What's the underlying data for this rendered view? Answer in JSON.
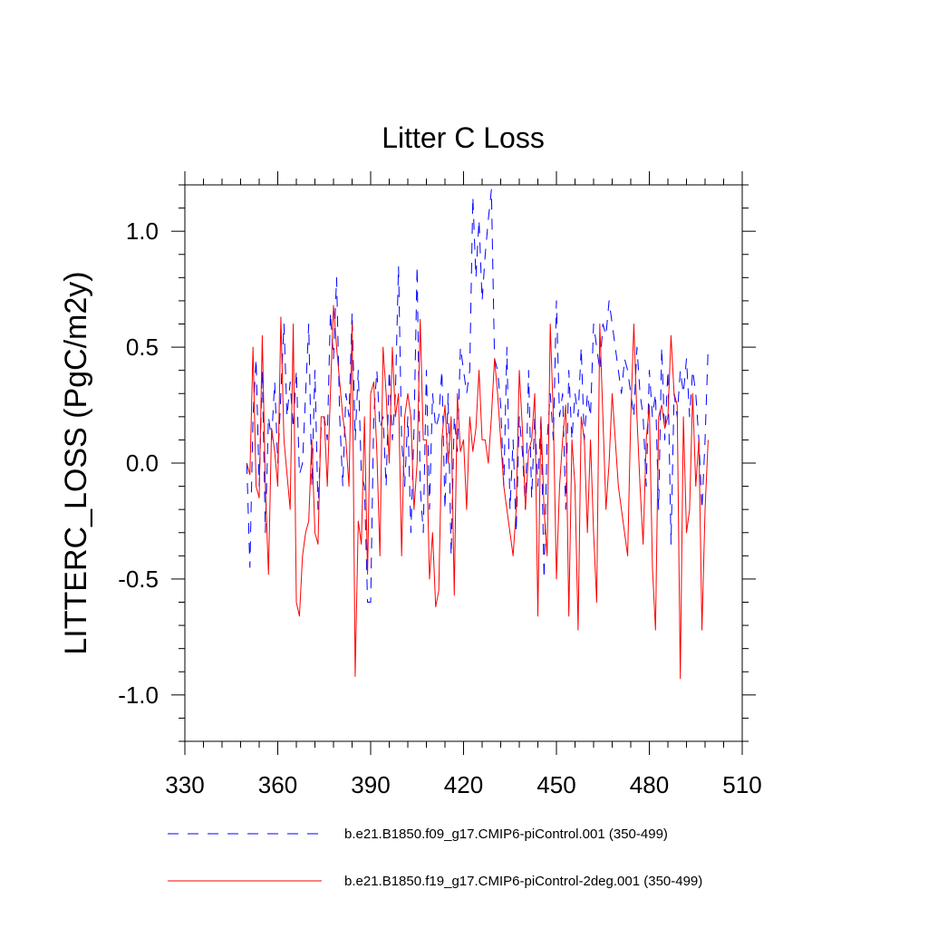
{
  "chart_data": {
    "type": "line",
    "title": "Litter C Loss",
    "xlabel": "",
    "ylabel": "LITTERC_LOSS  (PgC/m2y)",
    "xlim": [
      330,
      510
    ],
    "ylim": [
      -1.2,
      1.2
    ],
    "xticks": [
      330,
      360,
      390,
      420,
      450,
      480,
      510
    ],
    "xtick_labels": [
      "330",
      "360",
      "390",
      "420",
      "450",
      "480",
      "510"
    ],
    "yticks": [
      -1.0,
      -0.5,
      0.0,
      0.5,
      1.0
    ],
    "ytick_labels": [
      "-1.0",
      "-0.5",
      "0.0",
      "0.5",
      "1.0"
    ],
    "grid": false,
    "legend_position": "bottom",
    "x_start": 350,
    "x_end": 499,
    "series": [
      {
        "name": "b.e21.B1850.f09_g17.CMIP6-piControl.001 (350-499)",
        "color": "#0000ff",
        "style": "dashed",
        "values": [
          0.0,
          -0.45,
          0.2,
          0.45,
          -0.1,
          0.4,
          -0.3,
          0.2,
          0.1,
          0.35,
          0.0,
          0.3,
          0.6,
          0.2,
          0.35,
          0.15,
          0.4,
          -0.05,
          0.0,
          0.3,
          0.6,
          -0.1,
          0.4,
          -0.2,
          0.15,
          0.2,
          0.1,
          0.65,
          0.45,
          0.8,
          0.2,
          -0.1,
          0.3,
          0.2,
          0.65,
          0.1,
          0.4,
          -0.05,
          -0.1,
          -0.6,
          -0.6,
          0.2,
          0.4,
          0.15,
          0.2,
          -0.1,
          0.4,
          0.1,
          0.3,
          0.85,
          0.1,
          -0.1,
          0.2,
          -0.3,
          0.15,
          0.85,
          -0.1,
          -0.3,
          0.4,
          -0.2,
          0.3,
          0.15,
          0.2,
          0.4,
          -0.2,
          0.3,
          -0.4,
          0.2,
          0.05,
          0.5,
          0.4,
          0.3,
          0.4,
          1.15,
          0.8,
          1.05,
          0.7,
          0.9,
          1.05,
          1.18,
          0.45,
          0.4,
          0.25,
          -0.1,
          0.5,
          -0.2,
          0.1,
          -0.3,
          0.2,
          0.05,
          -0.2,
          0.4,
          -0.15,
          0.2,
          -0.1,
          0.2,
          -0.5,
          0.1,
          0.3,
          0.1,
          0.7,
          0.2,
          0.3,
          -0.2,
          0.4,
          0.1,
          0.3,
          0.2,
          0.5,
          0.1,
          0.3,
          0.2,
          0.6,
          0.5,
          0.4,
          0.6,
          0.55,
          0.7,
          0.6,
          0.5,
          0.4,
          0.3,
          0.45,
          0.4,
          0.3,
          0.2,
          0.5,
          0.3,
          0.2,
          -0.1,
          0.4,
          0.2,
          0.3,
          -0.2,
          0.5,
          0.1,
          0.4,
          -0.35,
          0.3,
          0.2,
          0.4,
          0.3,
          0.45,
          0.2,
          0.4,
          0.3,
          0.1,
          -0.2,
          0.1,
          0.5
        ]
      },
      {
        "name": "b.e21.B1850.f19_g17.CMIP6-piControl-2deg.001 (350-499)",
        "color": "#ff0000",
        "style": "solid",
        "values": [
          0.0,
          -0.05,
          0.5,
          -0.1,
          -0.15,
          0.55,
          -0.1,
          -0.48,
          0.15,
          0.05,
          -0.1,
          0.63,
          0.1,
          -0.05,
          -0.2,
          0.6,
          -0.6,
          -0.66,
          -0.4,
          -0.3,
          -0.25,
          0.1,
          -0.3,
          -0.35,
          0.2,
          0.2,
          -0.1,
          0.3,
          0.68,
          0.5,
          0.35,
          0.2,
          0.1,
          -0.1,
          0.6,
          -0.92,
          -0.25,
          -0.35,
          0.2,
          -0.48,
          0.3,
          0.35,
          0.05,
          -0.4,
          0.5,
          0.3,
          0.0,
          0.5,
          0.2,
          0.3,
          -0.4,
          0.2,
          0.3,
          0.2,
          -0.2,
          0.0,
          0.62,
          0.1,
          0.1,
          -0.5,
          -0.3,
          -0.62,
          -0.55,
          0.1,
          0.25,
          0.0,
          0.2,
          -0.57,
          0.3,
          0.05,
          0.1,
          -0.2,
          0.2,
          0.05,
          0.15,
          0.4,
          0.1,
          0.1,
          0.0,
          0.2,
          0.45,
          0.3,
          0.1,
          -0.1,
          -0.2,
          -0.3,
          -0.4,
          -0.2,
          0.4,
          0.15,
          -0.2,
          0.05,
          0.1,
          0.3,
          -0.66,
          0.2,
          -0.2,
          -0.4,
          0.6,
          0.2,
          -0.5,
          -0.1,
          0.1,
          0.25,
          -0.66,
          0.1,
          -0.1,
          -0.72,
          0.2,
          0.1,
          -0.3,
          0.1,
          -0.3,
          -0.6,
          0.6,
          0.2,
          -0.2,
          0.0,
          0.3,
          0.1,
          -0.1,
          -0.2,
          -0.3,
          -0.4,
          0.2,
          0.6,
          0.2,
          -0.1,
          -0.35,
          0.1,
          0.25,
          -0.45,
          -0.72,
          0.2,
          0.25,
          0.15,
          0.2,
          0.55,
          0.3,
          0.25,
          -0.93,
          0.2,
          -0.3,
          -0.2,
          0.3,
          -0.1,
          0.1,
          -0.72,
          -0.2,
          0.1
        ]
      }
    ]
  }
}
